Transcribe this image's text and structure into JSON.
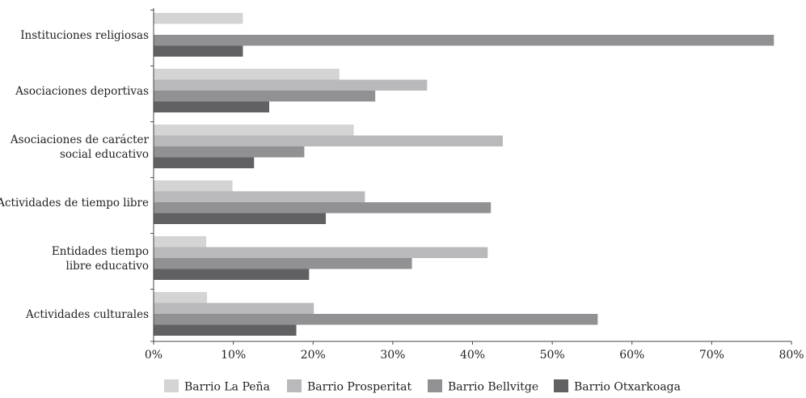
{
  "chart_data": {
    "type": "bar",
    "orientation": "horizontal",
    "categories": [
      [
        "Instituciones religiosas"
      ],
      [
        "Asociaciones deportivas"
      ],
      [
        "Asociaciones de carácter",
        "social educativo"
      ],
      [
        "Actividades de tiempo libre"
      ],
      [
        "Entidades tiempo",
        "libre educativo"
      ],
      [
        "Actividades culturales"
      ]
    ],
    "series": [
      {
        "name": "Barrio La Peña",
        "color": "#d4d4d4",
        "values": [
          11.2,
          23.3,
          25.1,
          9.9,
          6.6,
          6.7
        ]
      },
      {
        "name": "Barrio Prosperitat",
        "color": "#b9b9bb",
        "values": [
          0,
          34.3,
          43.8,
          26.5,
          41.9,
          20.1
        ]
      },
      {
        "name": "Barrio Bellvitge",
        "color": "#919193",
        "values": [
          77.8,
          27.8,
          18.9,
          42.3,
          32.4,
          55.7
        ]
      },
      {
        "name": "Barrio Otxarkoaga",
        "color": "#616164",
        "values": [
          11.2,
          14.5,
          12.6,
          21.6,
          19.5,
          17.9
        ]
      }
    ],
    "xlim": [
      0,
      80
    ],
    "x_ticks": [
      "0%",
      "10%",
      "20%",
      "30%",
      "40%",
      "50%",
      "60%",
      "70%",
      "80%"
    ],
    "grid": false,
    "legend_position": "bottom"
  }
}
